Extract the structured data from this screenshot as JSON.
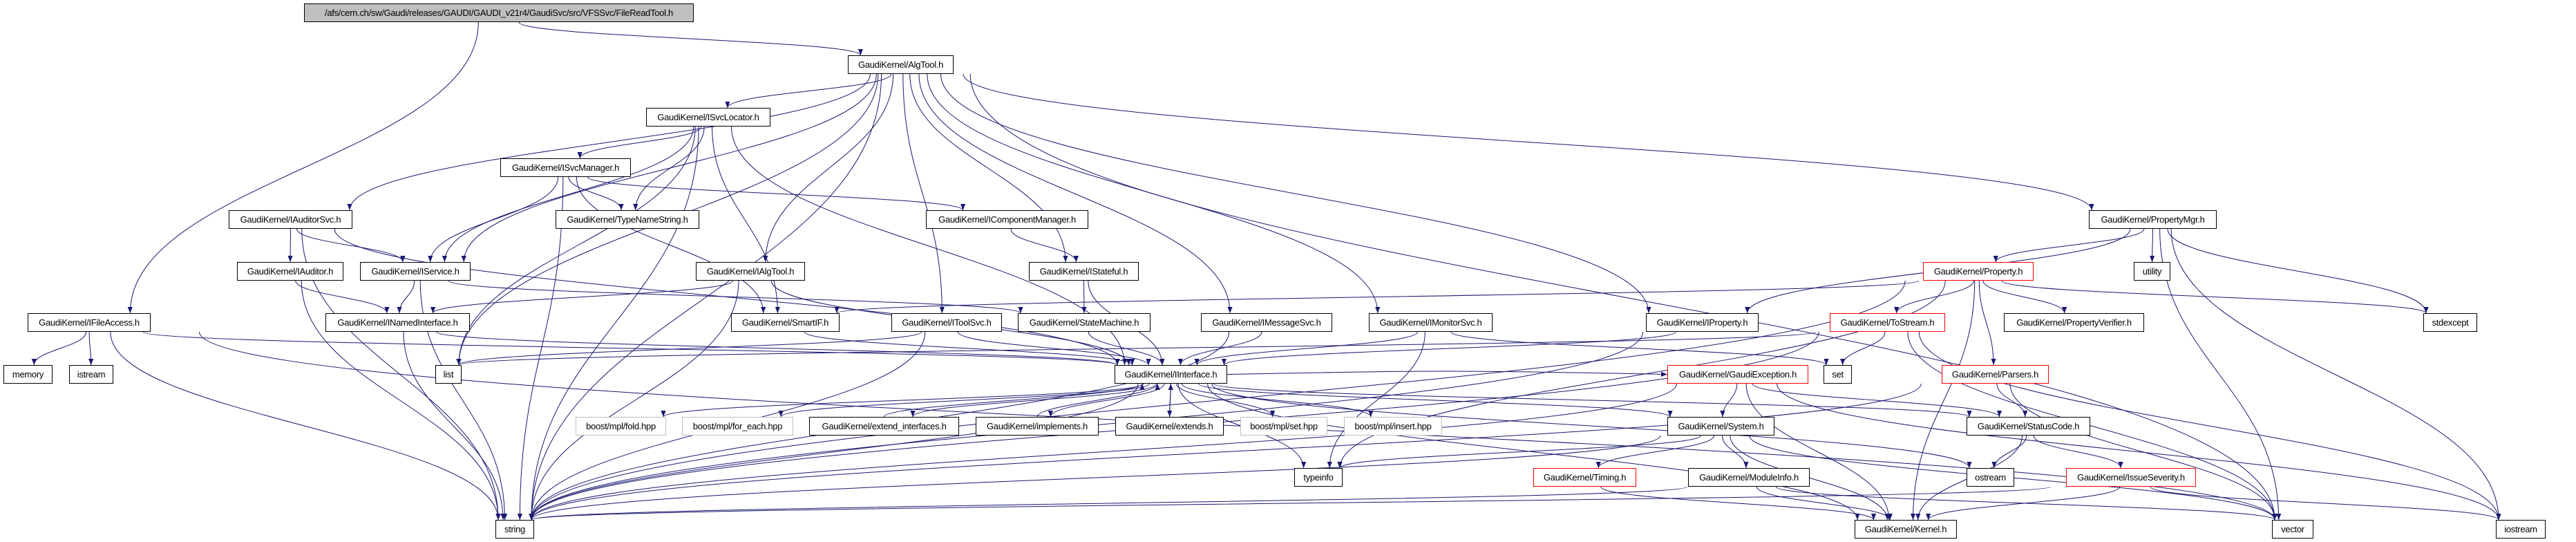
{
  "colors": {
    "edge": "#191970",
    "root_fill": "#bfbfbf",
    "incomplete_border": "#ff0000",
    "external_border": "#bfbfbf"
  },
  "nodes": [
    {
      "id": "root",
      "label": "/afs/cern.ch/sw/Gaudi/releases/GAUDI/GAUDI_v21r4/GaudiSvc/src/VFSSvc/FileReadTool.h",
      "style": "root"
    },
    {
      "id": "AlgTool",
      "label": "GaudiKernel/AlgTool.h",
      "style": "normal"
    },
    {
      "id": "ISvcLocator",
      "label": "GaudiKernel/ISvcLocator.h",
      "style": "normal"
    },
    {
      "id": "ISvcManager",
      "label": "GaudiKernel/ISvcManager.h",
      "style": "normal"
    },
    {
      "id": "IAuditorSvc",
      "label": "GaudiKernel/IAuditorSvc.h",
      "style": "normal"
    },
    {
      "id": "TypeNameString",
      "label": "GaudiKernel/TypeNameString.h",
      "style": "normal"
    },
    {
      "id": "IComponentManager",
      "label": "GaudiKernel/IComponentManager.h",
      "style": "normal"
    },
    {
      "id": "IAuditor",
      "label": "GaudiKernel/IAuditor.h",
      "style": "normal"
    },
    {
      "id": "IService",
      "label": "GaudiKernel/IService.h",
      "style": "normal"
    },
    {
      "id": "IAlgTool",
      "label": "GaudiKernel/IAlgTool.h",
      "style": "normal"
    },
    {
      "id": "IStateful",
      "label": "GaudiKernel/IStateful.h",
      "style": "normal"
    },
    {
      "id": "IFileAccess",
      "label": "GaudiKernel/IFileAccess.h",
      "style": "normal"
    },
    {
      "id": "INamedInterface",
      "label": "GaudiKernel/INamedInterface.h",
      "style": "normal"
    },
    {
      "id": "SmartIF",
      "label": "GaudiKernel/SmartIF.h",
      "style": "normal"
    },
    {
      "id": "IToolSvc",
      "label": "GaudiKernel/IToolSvc.h",
      "style": "normal"
    },
    {
      "id": "IStateMachine",
      "label": "GaudiKernel/StateMachine.h",
      "style": "normal"
    },
    {
      "id": "IMessageSvc",
      "label": "GaudiKernel/IMessageSvc.h",
      "style": "normal"
    },
    {
      "id": "IMonitorSvc",
      "label": "GaudiKernel/IMonitorSvc.h",
      "style": "normal"
    },
    {
      "id": "IProperty",
      "label": "GaudiKernel/IProperty.h",
      "style": "normal"
    },
    {
      "id": "ToStream",
      "label": "GaudiKernel/ToStream.h",
      "style": "incomplete"
    },
    {
      "id": "PropertyVerifier",
      "label": "GaudiKernel/PropertyVerifier.h",
      "style": "normal"
    },
    {
      "id": "stdexcept",
      "label": "stdexcept",
      "style": "normal"
    },
    {
      "id": "PropertyMgr",
      "label": "GaudiKernel/PropertyMgr.h",
      "style": "normal"
    },
    {
      "id": "Property",
      "label": "GaudiKernel/Property.h",
      "style": "incomplete"
    },
    {
      "id": "utility",
      "label": "utility",
      "style": "normal"
    },
    {
      "id": "memory",
      "label": "memory",
      "style": "normal"
    },
    {
      "id": "istream",
      "label": "istream",
      "style": "normal"
    },
    {
      "id": "list",
      "label": "list",
      "style": "normal"
    },
    {
      "id": "IInterface",
      "label": "GaudiKernel/IInterface.h",
      "style": "normal"
    },
    {
      "id": "set",
      "label": "set",
      "style": "normal"
    },
    {
      "id": "GaudiException",
      "label": "GaudiKernel/GaudiException.h",
      "style": "incomplete"
    },
    {
      "id": "Parsers",
      "label": "GaudiKernel/Parsers.h",
      "style": "incomplete"
    },
    {
      "id": "fold",
      "label": "boost/mpl/fold.hpp",
      "style": "external"
    },
    {
      "id": "for_each",
      "label": "boost/mpl/for_each.hpp",
      "style": "external"
    },
    {
      "id": "extend_interfaces",
      "label": "GaudiKernel/extend_interfaces.h",
      "style": "normal"
    },
    {
      "id": "implements",
      "label": "GaudiKernel/implements.h",
      "style": "normal"
    },
    {
      "id": "extends",
      "label": "GaudiKernel/extends.h",
      "style": "normal"
    },
    {
      "id": "set_hpp",
      "label": "boost/mpl/set.hpp",
      "style": "external"
    },
    {
      "id": "insert_hpp",
      "label": "boost/mpl/insert.hpp",
      "style": "external"
    },
    {
      "id": "System",
      "label": "GaudiKernel/System.h",
      "style": "normal"
    },
    {
      "id": "StatusCode",
      "label": "GaudiKernel/StatusCode.h",
      "style": "normal"
    },
    {
      "id": "typeinfo",
      "label": "typeinfo",
      "style": "normal"
    },
    {
      "id": "ostream",
      "label": "ostream",
      "style": "normal"
    },
    {
      "id": "Timing",
      "label": "GaudiKernel/Timing.h",
      "style": "incomplete"
    },
    {
      "id": "ModuleInfo",
      "label": "GaudiKernel/ModuleInfo.h",
      "style": "normal"
    },
    {
      "id": "IssueSeverity",
      "label": "GaudiKernel/IssueSeverity.h",
      "style": "incomplete"
    },
    {
      "id": "string",
      "label": "string",
      "style": "normal"
    },
    {
      "id": "Kernel",
      "label": "GaudiKernel/Kernel.h",
      "style": "normal"
    },
    {
      "id": "vector",
      "label": "vector",
      "style": "normal"
    },
    {
      "id": "iostream",
      "label": "iostream",
      "style": "normal"
    }
  ],
  "edges": [
    [
      "root",
      "AlgTool"
    ],
    [
      "root",
      "IFileAccess"
    ],
    [
      "AlgTool",
      "ISvcLocator"
    ],
    [
      "AlgTool",
      "IAuditorSvc"
    ],
    [
      "AlgTool",
      "IService"
    ],
    [
      "AlgTool",
      "IAlgTool"
    ],
    [
      "AlgTool",
      "IStateful"
    ],
    [
      "AlgTool",
      "IToolSvc"
    ],
    [
      "AlgTool",
      "IMessageSvc"
    ],
    [
      "AlgTool",
      "IMonitorSvc"
    ],
    [
      "AlgTool",
      "IProperty"
    ],
    [
      "AlgTool",
      "PropertyMgr"
    ],
    [
      "AlgTool",
      "vector"
    ],
    [
      "AlgTool",
      "string"
    ],
    [
      "AlgTool",
      "list"
    ],
    [
      "ISvcLocator",
      "ISvcManager"
    ],
    [
      "ISvcLocator",
      "TypeNameString"
    ],
    [
      "ISvcLocator",
      "IInterface"
    ],
    [
      "ISvcLocator",
      "SmartIF"
    ],
    [
      "ISvcLocator",
      "string"
    ],
    [
      "ISvcLocator",
      "list"
    ],
    [
      "ISvcLocator",
      "IService"
    ],
    [
      "ISvcManager",
      "IComponentManager"
    ],
    [
      "ISvcManager",
      "TypeNameString"
    ],
    [
      "ISvcManager",
      "IService"
    ],
    [
      "ISvcManager",
      "SmartIF"
    ],
    [
      "ISvcManager",
      "string"
    ],
    [
      "IComponentManager",
      "IStateful"
    ],
    [
      "IAuditorSvc",
      "IAuditor"
    ],
    [
      "IAuditorSvc",
      "IService"
    ],
    [
      "IAuditorSvc",
      "string"
    ],
    [
      "IAuditorSvc",
      "IInterface"
    ],
    [
      "IAuditor",
      "INamedInterface"
    ],
    [
      "IAuditor",
      "string"
    ],
    [
      "IService",
      "INamedInterface"
    ],
    [
      "IService",
      "IStateMachine"
    ],
    [
      "IService",
      "string"
    ],
    [
      "IAlgTool",
      "INamedInterface"
    ],
    [
      "IAlgTool",
      "IInterface"
    ],
    [
      "IAlgTool",
      "string"
    ],
    [
      "IStateful",
      "IStateMachine"
    ],
    [
      "IStateful",
      "IInterface"
    ],
    [
      "IFileAccess",
      "memory"
    ],
    [
      "IFileAccess",
      "istream"
    ],
    [
      "IFileAccess",
      "string"
    ],
    [
      "IFileAccess",
      "IInterface"
    ],
    [
      "IFileAccess",
      "vector"
    ],
    [
      "INamedInterface",
      "IInterface"
    ],
    [
      "INamedInterface",
      "string"
    ],
    [
      "SmartIF",
      "IInterface"
    ],
    [
      "IToolSvc",
      "IInterface"
    ],
    [
      "IToolSvc",
      "list"
    ],
    [
      "IToolSvc",
      "string"
    ],
    [
      "IStateMachine",
      "IInterface"
    ],
    [
      "IMessageSvc",
      "IInterface"
    ],
    [
      "IMessageSvc",
      "string"
    ],
    [
      "IMonitorSvc",
      "IInterface"
    ],
    [
      "IMonitorSvc",
      "set"
    ],
    [
      "IMonitorSvc",
      "typeinfo"
    ],
    [
      "IProperty",
      "IInterface"
    ],
    [
      "IProperty",
      "string"
    ],
    [
      "PropertyMgr",
      "Property"
    ],
    [
      "PropertyMgr",
      "IProperty"
    ],
    [
      "PropertyMgr",
      "utility"
    ],
    [
      "PropertyMgr",
      "stdexcept"
    ],
    [
      "PropertyMgr",
      "vector"
    ],
    [
      "PropertyMgr",
      "iostream"
    ],
    [
      "Property",
      "ToStream"
    ],
    [
      "Property",
      "PropertyVerifier"
    ],
    [
      "Property",
      "Parsers"
    ],
    [
      "Property",
      "stdexcept"
    ],
    [
      "Property",
      "SmartIF"
    ],
    [
      "Property",
      "Kernel"
    ],
    [
      "Property",
      "string"
    ],
    [
      "Property",
      "typeinfo"
    ],
    [
      "ToStream",
      "set"
    ],
    [
      "ToStream",
      "string"
    ],
    [
      "ToStream",
      "vector"
    ],
    [
      "ToStream",
      "iostream"
    ],
    [
      "ToStream",
      "list"
    ],
    [
      "IInterface",
      "fold"
    ],
    [
      "IInterface",
      "for_each"
    ],
    [
      "IInterface",
      "extend_interfaces"
    ],
    [
      "IInterface",
      "implements"
    ],
    [
      "IInterface",
      "extends"
    ],
    [
      "IInterface",
      "set_hpp"
    ],
    [
      "IInterface",
      "insert_hpp"
    ],
    [
      "IInterface",
      "System"
    ],
    [
      "IInterface",
      "StatusCode"
    ],
    [
      "IInterface",
      "GaudiException"
    ],
    [
      "IInterface",
      "Kernel"
    ],
    [
      "IInterface",
      "ostream"
    ],
    [
      "IInterface",
      "typeinfo"
    ],
    [
      "IInterface",
      "string"
    ],
    [
      "extend_interfaces",
      "IInterface"
    ],
    [
      "implements",
      "IInterface"
    ],
    [
      "extends",
      "IInterface"
    ],
    [
      "GaudiException",
      "System"
    ],
    [
      "GaudiException",
      "StatusCode"
    ],
    [
      "GaudiException",
      "Kernel"
    ],
    [
      "GaudiException",
      "string"
    ],
    [
      "GaudiException",
      "iostream"
    ],
    [
      "Parsers",
      "StatusCode"
    ],
    [
      "Parsers",
      "string"
    ],
    [
      "Parsers",
      "vector"
    ],
    [
      "System",
      "Kernel"
    ],
    [
      "System",
      "Timing"
    ],
    [
      "System",
      "ModuleInfo"
    ],
    [
      "System",
      "string"
    ],
    [
      "System",
      "vector"
    ],
    [
      "System",
      "typeinfo"
    ],
    [
      "StatusCode",
      "ostream"
    ],
    [
      "StatusCode",
      "IssueSeverity"
    ],
    [
      "StatusCode",
      "Kernel"
    ],
    [
      "Timing",
      "Kernel"
    ],
    [
      "ModuleInfo",
      "Kernel"
    ],
    [
      "ModuleInfo",
      "string"
    ],
    [
      "ModuleInfo",
      "vector"
    ],
    [
      "IssueSeverity",
      "Kernel"
    ],
    [
      "IssueSeverity",
      "string"
    ],
    [
      "IssueSeverity",
      "iostream"
    ]
  ]
}
